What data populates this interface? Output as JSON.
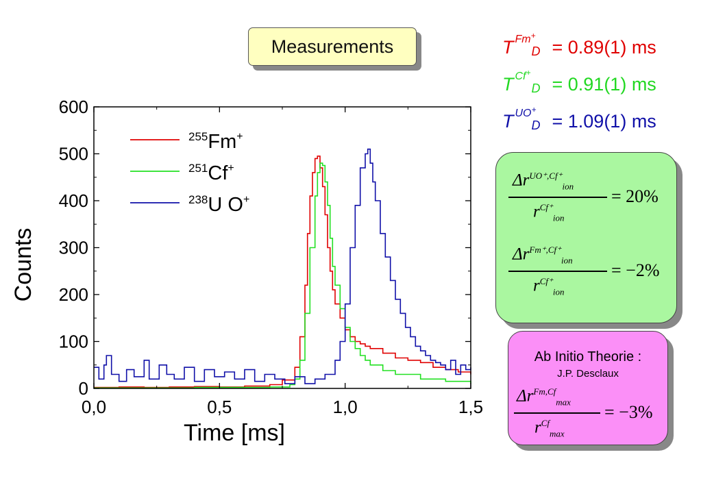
{
  "header": {
    "title": "Measurements"
  },
  "time_constants": [
    {
      "symbol": "T",
      "ion": "Fm",
      "charge": "+",
      "sub": "D",
      "value": "= 0.89(1) ms",
      "color": "#e00000"
    },
    {
      "symbol": "T",
      "ion": "Cf",
      "charge": "+",
      "sub": "D",
      "value": "= 0.91(1) ms",
      "color": "#22d822"
    },
    {
      "symbol": "T",
      "ion": "UO",
      "charge": "+",
      "sub": "D",
      "value": "= 1.09(1) ms",
      "color": "#1010a8"
    }
  ],
  "ratio_box": {
    "f1_num_base": "Δr",
    "f1_num_sup": "UO⁺,Cf⁺",
    "f1_num_sub": "ion",
    "f1_den_base": "r",
    "f1_den_sup": "Cf⁺",
    "f1_den_sub": "ion",
    "f1_eq": "= 20%",
    "f2_num_base": "Δr",
    "f2_num_sup": "Fm⁺,Cf⁺",
    "f2_num_sub": "ion",
    "f2_den_base": "r",
    "f2_den_sup": "Cf⁺",
    "f2_den_sub": "ion",
    "f2_eq": "= −2%"
  },
  "theory_box": {
    "title": "Ab Initio Theorie :",
    "author": "J.P. Desclaux",
    "num_base": "Δr",
    "num_sup": "Fm,Cf",
    "num_sub": "max",
    "den_base": "r",
    "den_sup": "Cf",
    "den_sub": "max",
    "eq": "= −3%"
  },
  "chart_data": {
    "type": "line",
    "xlabel": "Time [ms]",
    "ylabel": "Counts",
    "xlim": [
      0,
      1.5
    ],
    "ylim": [
      0,
      600
    ],
    "x_ticks": [
      0,
      0.5,
      1.0,
      1.5
    ],
    "x_tick_labels": [
      "0,0",
      "0,5",
      "1,0",
      "1,5"
    ],
    "y_ticks": [
      0,
      100,
      200,
      300,
      400,
      500,
      600
    ],
    "y_tick_labels": [
      "0",
      "100",
      "200",
      "300",
      "400",
      "500",
      "600"
    ],
    "legend_position": "top-left",
    "series": [
      {
        "name": "²⁵⁵Fm⁺",
        "label_mass": "255",
        "label_elem": "Fm",
        "label_charge": "+",
        "color": "#e00000",
        "x": [
          0,
          0.1,
          0.2,
          0.3,
          0.4,
          0.5,
          0.6,
          0.7,
          0.75,
          0.8,
          0.82,
          0.84,
          0.85,
          0.86,
          0.87,
          0.88,
          0.89,
          0.9,
          0.91,
          0.92,
          0.93,
          0.94,
          0.95,
          0.96,
          0.98,
          1.0,
          1.02,
          1.04,
          1.06,
          1.08,
          1.1,
          1.15,
          1.2,
          1.25,
          1.3,
          1.35,
          1.4,
          1.45,
          1.5
        ],
        "y": [
          2,
          3,
          2,
          3,
          4,
          3,
          5,
          8,
          18,
          45,
          110,
          220,
          330,
          410,
          460,
          490,
          495,
          470,
          430,
          370,
          300,
          250,
          210,
          180,
          150,
          125,
          110,
          100,
          95,
          90,
          85,
          75,
          65,
          60,
          55,
          45,
          40,
          35,
          30
        ]
      },
      {
        "name": "²⁵¹Cf⁺",
        "label_mass": "251",
        "label_elem": "Cf",
        "label_charge": "+",
        "color": "#22e022",
        "x": [
          0,
          0.2,
          0.4,
          0.6,
          0.7,
          0.78,
          0.8,
          0.82,
          0.84,
          0.86,
          0.88,
          0.89,
          0.9,
          0.91,
          0.92,
          0.93,
          0.94,
          0.95,
          0.96,
          0.98,
          1.0,
          1.02,
          1.04,
          1.06,
          1.08,
          1.1,
          1.15,
          1.2,
          1.3,
          1.4,
          1.5
        ],
        "y": [
          1,
          1,
          2,
          2,
          3,
          8,
          20,
          60,
          160,
          300,
          410,
          460,
          480,
          475,
          440,
          390,
          320,
          260,
          220,
          170,
          130,
          100,
          85,
          70,
          60,
          50,
          38,
          30,
          20,
          15,
          10
        ]
      },
      {
        "name": "²³⁸U O⁺",
        "label_mass": "238",
        "label_elem": "U O",
        "label_charge": "+",
        "color": "#1010a8",
        "x": [
          0,
          0.02,
          0.04,
          0.05,
          0.07,
          0.1,
          0.13,
          0.16,
          0.2,
          0.22,
          0.26,
          0.29,
          0.32,
          0.36,
          0.4,
          0.44,
          0.48,
          0.52,
          0.56,
          0.6,
          0.64,
          0.68,
          0.72,
          0.76,
          0.8,
          0.84,
          0.88,
          0.92,
          0.96,
          0.98,
          1.0,
          1.02,
          1.04,
          1.06,
          1.08,
          1.09,
          1.1,
          1.11,
          1.12,
          1.14,
          1.16,
          1.18,
          1.2,
          1.22,
          1.24,
          1.26,
          1.28,
          1.3,
          1.32,
          1.34,
          1.36,
          1.38,
          1.4,
          1.42,
          1.44,
          1.46,
          1.48,
          1.5
        ],
        "y": [
          45,
          20,
          50,
          70,
          30,
          15,
          40,
          25,
          60,
          20,
          50,
          30,
          20,
          45,
          15,
          40,
          25,
          35,
          20,
          40,
          15,
          30,
          20,
          10,
          25,
          10,
          20,
          30,
          60,
          100,
          180,
          300,
          390,
          470,
          500,
          510,
          480,
          440,
          400,
          330,
          280,
          230,
          190,
          160,
          130,
          110,
          90,
          80,
          70,
          60,
          55,
          50,
          40,
          60,
          30,
          50,
          40,
          45
        ]
      }
    ]
  }
}
